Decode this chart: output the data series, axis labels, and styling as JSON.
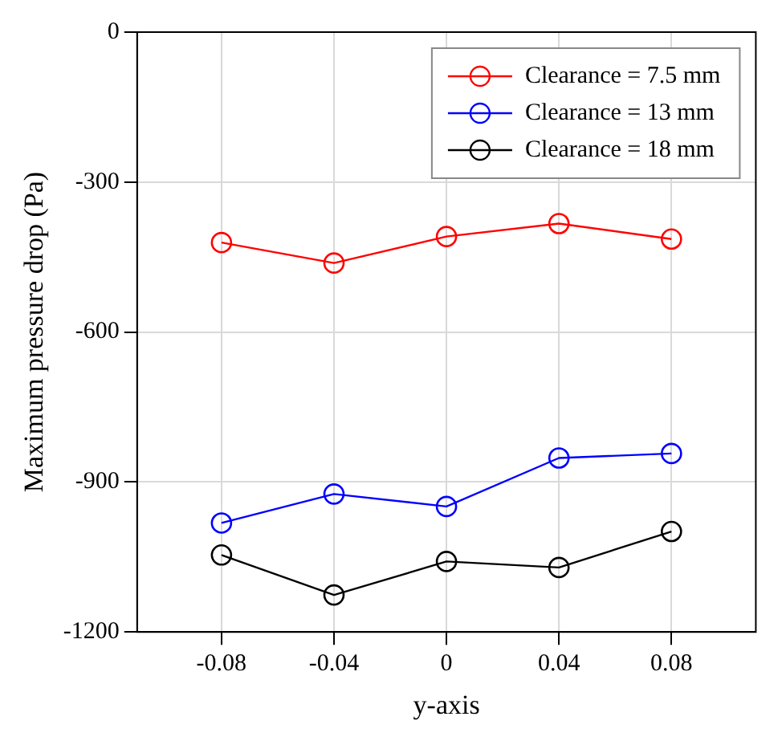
{
  "chart_data": {
    "type": "line",
    "xlabel": "y-axis",
    "ylabel": "Maximum pressure drop (Pa)",
    "x": [
      -0.08,
      -0.04,
      0,
      0.04,
      0.08
    ],
    "xlim": [
      -0.11,
      0.11
    ],
    "xticks": [
      -0.08,
      -0.04,
      0,
      0.04,
      0.08
    ],
    "ylim": [
      -1200,
      0
    ],
    "yticks": [
      -1200,
      -900,
      -600,
      -300,
      0
    ],
    "series": [
      {
        "name": "Clearance = 7.5 mm",
        "color": "#ff0000",
        "values": [
          -421,
          -462,
          -409,
          -383,
          -414
        ]
      },
      {
        "name": "Clearance = 13 mm",
        "color": "#0000ff",
        "values": [
          -982,
          -924,
          -949,
          -852,
          -843
        ]
      },
      {
        "name": "Clearance = 18 mm",
        "color": "#000000",
        "values": [
          -1046,
          -1126,
          -1059,
          -1071,
          -999
        ]
      }
    ],
    "grid": true,
    "legend": "top right",
    "marker": "circle",
    "line_style": "solid"
  }
}
